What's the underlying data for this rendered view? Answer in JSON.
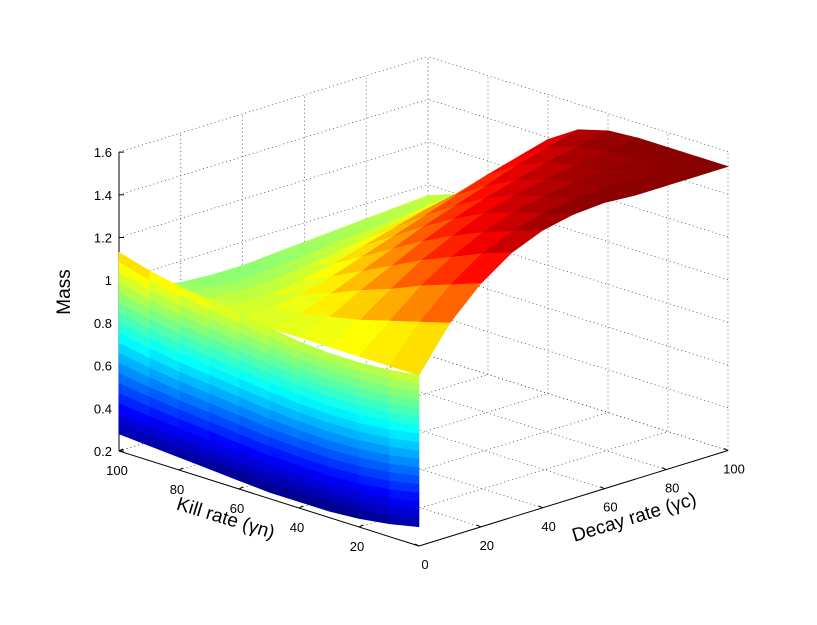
{
  "colors": {
    "colormap": "jet",
    "background": "#ffffff",
    "axis": "#000000",
    "grid": "#333333"
  },
  "chart_data": {
    "type": "surface",
    "title": "",
    "zlabel": "Mass",
    "kill_axis_label": "Kill rate (γn)",
    "decay_axis_label": "Decay rate (γc)",
    "zlim": [
      0.2,
      1.6
    ],
    "zticks": [
      "0.2",
      "0.4",
      "0.6",
      "0.8",
      "1",
      "1.2",
      "1.4",
      "1.6"
    ],
    "kill_range": [
      0,
      100
    ],
    "kill_ticks": [
      "20",
      "40",
      "60",
      "80",
      "100"
    ],
    "decay_range": [
      0,
      100
    ],
    "decay_ticks": [
      "0",
      "20",
      "40",
      "60",
      "80",
      "100"
    ],
    "grid": true,
    "kill_rate": [
      0,
      10,
      20,
      30,
      40,
      50,
      60,
      70,
      80,
      90,
      100
    ],
    "decay_rate": [
      0,
      10,
      20,
      30,
      40,
      50,
      60,
      70,
      80,
      90,
      100
    ],
    "mass": [
      [
        1.0,
        1.2,
        1.34,
        1.44,
        1.5,
        1.53,
        1.54,
        1.53,
        1.53,
        1.53,
        1.53
      ],
      [
        1.0,
        1.16,
        1.29,
        1.39,
        1.45,
        1.49,
        1.51,
        1.52,
        1.52,
        1.52,
        1.53
      ],
      [
        1.0,
        1.12,
        1.24,
        1.33,
        1.4,
        1.45,
        1.48,
        1.5,
        1.51,
        1.52,
        1.53
      ],
      [
        1.0,
        1.08,
        1.18,
        1.27,
        1.34,
        1.4,
        1.44,
        1.47,
        1.49,
        1.51,
        1.53
      ],
      [
        1.0,
        1.05,
        1.13,
        1.2,
        1.27,
        1.33,
        1.38,
        1.42,
        1.46,
        1.49,
        1.52
      ],
      [
        1.0,
        1.02,
        1.07,
        1.13,
        1.19,
        1.25,
        1.3,
        1.35,
        1.4,
        1.44,
        1.48
      ],
      [
        1.0,
        1.0,
        1.02,
        1.06,
        1.11,
        1.16,
        1.21,
        1.26,
        1.31,
        1.35,
        1.39
      ],
      [
        1.0,
        0.98,
        0.98,
        1.0,
        1.03,
        1.07,
        1.11,
        1.15,
        1.18,
        1.22,
        1.25
      ],
      [
        1.0,
        0.96,
        0.95,
        0.95,
        0.97,
        0.99,
        1.01,
        1.04,
        1.06,
        1.08,
        1.1
      ],
      [
        1.0,
        0.94,
        0.92,
        0.91,
        0.92,
        0.93,
        0.95,
        0.96,
        0.97,
        0.99,
        1.0
      ],
      [
        1.0,
        0.93,
        0.9,
        0.89,
        0.89,
        0.9,
        0.91,
        0.92,
        0.93,
        0.94,
        0.95
      ]
    ],
    "wall": {
      "at_decay_rate": 0,
      "mass_top": [
        1.0,
        0.98,
        0.97,
        0.97,
        0.98,
        1.0,
        1.02,
        1.04,
        1.06,
        1.09,
        1.13
      ],
      "mass_bottom": [
        0.29,
        0.26,
        0.24,
        0.23,
        0.23,
        0.23,
        0.24,
        0.25,
        0.26,
        0.27,
        0.28
      ]
    }
  }
}
